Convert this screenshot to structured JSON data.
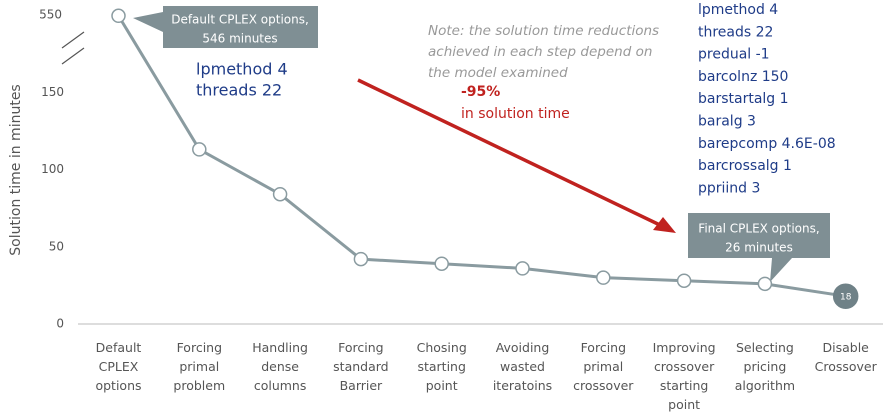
{
  "chart_data": {
    "type": "line",
    "y_label": "Solution time in minutes",
    "categories": [
      "Default CPLEX options",
      "Forcing primal problem",
      "Handling dense columns",
      "Forcing standard Barrier",
      "Chosing starting point",
      "Avoiding wasted iteratoins",
      "Forcing primal crossover",
      "Improving crossover starting point",
      "Selecting pricing algorithm",
      "Disable Crossover"
    ],
    "values": [
      546,
      113,
      84,
      42,
      39,
      36,
      30,
      28,
      26,
      18
    ],
    "color": "#8a9ba0",
    "ylim": [
      0,
      550
    ],
    "yticks": [
      0,
      50,
      100,
      150,
      550
    ],
    "broken_axis": true,
    "highlight_last": true,
    "callouts": [
      {
        "lines": [
          "Default CPLEX options,",
          "546 minutes"
        ]
      },
      {
        "lines": [
          "Final CPLEX options,",
          "26 minutes"
        ]
      }
    ],
    "note": [
      "Note: the solution time reductions",
      "achieved in each step depend on",
      "the model examined"
    ],
    "reduction": [
      "-95%",
      "in solution time"
    ],
    "first_params": [
      "lpmethod 4",
      "threads 22"
    ],
    "final_params": [
      "lpmethod 4",
      "threads 22",
      "predual -1",
      "barcolnz 150",
      "barstartalg 1",
      "baralg 3",
      "barepcomp 4.6E-08",
      "barcrossalg 1",
      "ppriind 3"
    ]
  }
}
